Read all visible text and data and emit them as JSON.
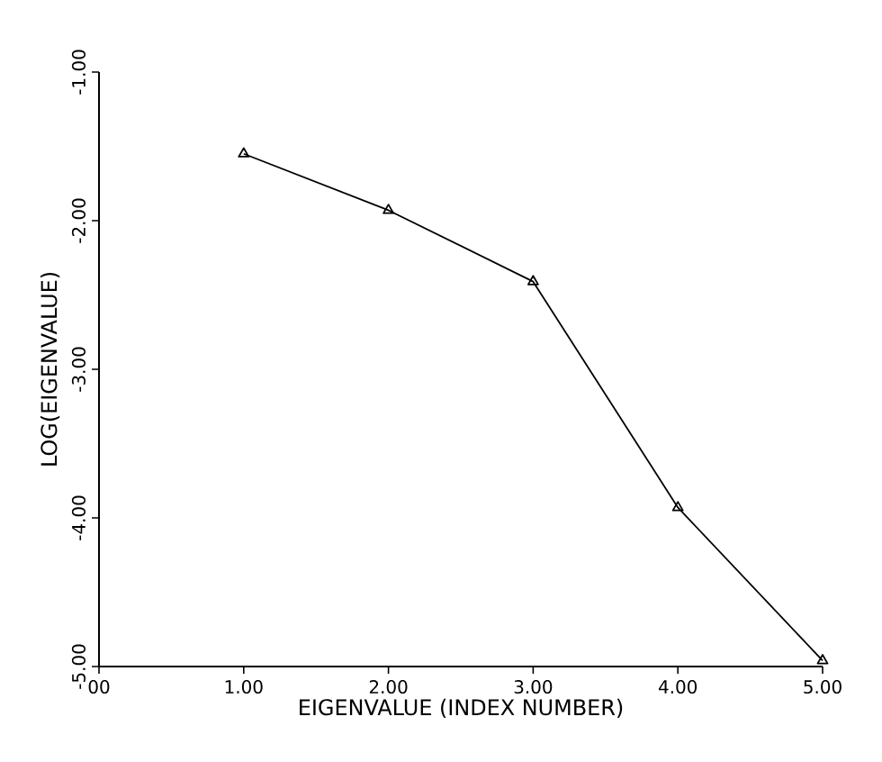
{
  "chart_data": {
    "type": "line",
    "xlabel": "EIGENVALUE (INDEX NUMBER)",
    "ylabel": "LOG(EIGENVALUE)",
    "x": [
      1,
      2,
      3,
      4,
      5
    ],
    "series": [
      {
        "color": "#000000",
        "values": [
          -1.55,
          -1.93,
          -2.41,
          -3.93,
          -4.96
        ]
      }
    ],
    "xlim": [
      0,
      5
    ],
    "ylim": [
      -5,
      -1
    ],
    "xticks": [
      {
        "value": 0,
        "label": "00"
      },
      {
        "value": 1,
        "label": "1.00"
      },
      {
        "value": 2,
        "label": "2.00"
      },
      {
        "value": 3,
        "label": "3.00"
      },
      {
        "value": 4,
        "label": "4.00"
      },
      {
        "value": 5,
        "label": "5.00"
      }
    ],
    "yticks": [
      {
        "value": -5,
        "label": "-5.00"
      },
      {
        "value": -4,
        "label": "-4.00"
      },
      {
        "value": -3,
        "label": "-3.00"
      },
      {
        "value": -2,
        "label": "-2.00"
      },
      {
        "value": -1,
        "label": "-1.00"
      }
    ],
    "marker": "triangle",
    "line_style": "solid",
    "grid": false
  }
}
